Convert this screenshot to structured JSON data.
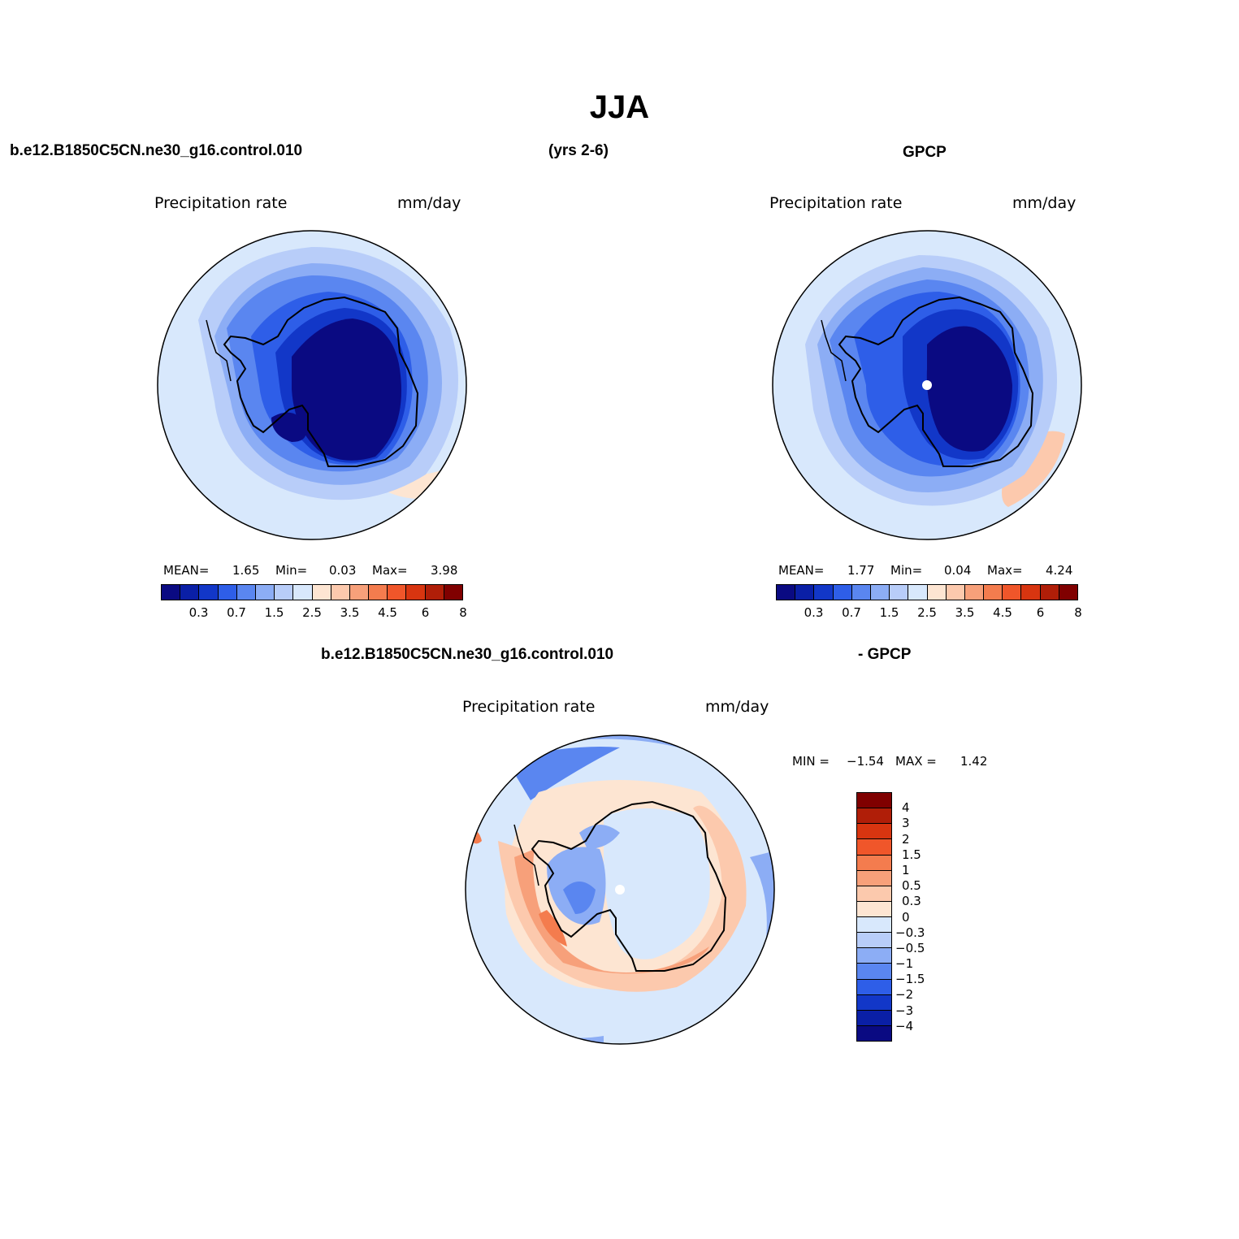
{
  "title": "JJA",
  "header": {
    "case_name": "b.e12.B1850C5CN.ne30_g16.control.010",
    "years": "(yrs 2-6)",
    "obs_name": "GPCP"
  },
  "panels": [
    {
      "variable": "Precipitation rate",
      "units": "mm/day",
      "mean_label": "MEAN=",
      "mean_value": "1.65",
      "min_label": "Min=",
      "min_value": "0.03",
      "max_label": "Max=",
      "max_value": "3.98"
    },
    {
      "variable": "Precipitation rate",
      "units": "mm/day",
      "mean_label": "MEAN=",
      "mean_value": "1.77",
      "min_label": "Min=",
      "min_value": "0.04",
      "max_label": "Max=",
      "max_value": "4.24"
    }
  ],
  "diff_panel": {
    "title_left": "b.e12.B1850C5CN.ne30_g16.control.010",
    "title_right": "- GPCP",
    "variable": "Precipitation rate",
    "units": "mm/day",
    "min_label": "MIN =",
    "min_value": "−1.54",
    "max_label": "MAX =",
    "max_value": "1.42"
  },
  "colorbar_abs": {
    "colors": [
      "#0a0a82",
      "#0a1fa6",
      "#1237c8",
      "#2e5ee8",
      "#5a86f0",
      "#8cadf5",
      "#b8cdf9",
      "#d8e8fc",
      "#fde5d2",
      "#fcc9ad",
      "#f7a07a",
      "#f47c4e",
      "#f0562a",
      "#d83510",
      "#b01e08",
      "#800000"
    ],
    "labels": [
      "0.3",
      "0.7",
      "1.5",
      "2.5",
      "3.5",
      "4.5",
      "6",
      "8"
    ]
  },
  "colorbar_diff": {
    "colors": [
      "#800000",
      "#b01e08",
      "#d83510",
      "#f0562a",
      "#f47c4e",
      "#f7a07a",
      "#fcc9ad",
      "#fde5d2",
      "#d8e8fc",
      "#b8cdf9",
      "#8cadf5",
      "#5a86f0",
      "#2e5ee8",
      "#1237c8",
      "#0a1fa6",
      "#0a0a82"
    ],
    "labels": [
      "4",
      "3",
      "2",
      "1.5",
      "1",
      "0.5",
      "0.3",
      "0",
      "−0.3",
      "−0.5",
      "−1",
      "−1.5",
      "−2",
      "−3",
      "−4"
    ]
  }
}
